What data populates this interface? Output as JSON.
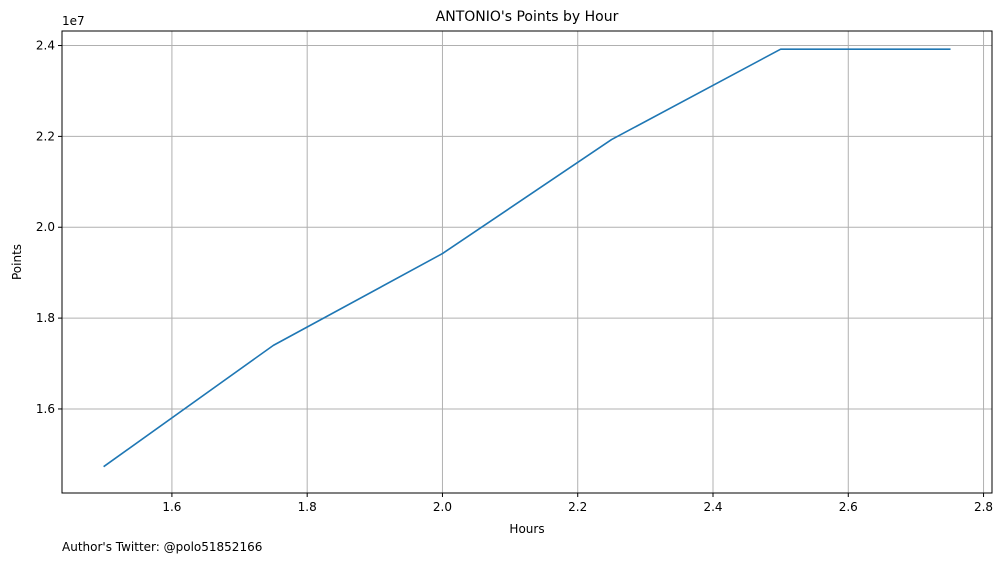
{
  "chart_data": {
    "type": "line",
    "title": "ANTONIO's Points by Hour",
    "xlabel": "Hours",
    "ylabel": "Points",
    "y_offset_label": "1e7",
    "y_multiplier": 10000000,
    "x": [
      1.5,
      1.75,
      2.0,
      2.25,
      2.5,
      2.75
    ],
    "series": [
      {
        "values": [
          14740000,
          17400000,
          19420000,
          21930000,
          23920000,
          23920000
        ],
        "color": "#1f77b4"
      }
    ],
    "xlim": [
      1.4375,
      2.8125
    ],
    "ylim": [
      14150000,
      24320000
    ],
    "xticks": [
      1.6,
      1.8,
      2.0,
      2.2,
      2.4,
      2.6,
      2.8
    ],
    "xtick_labels": [
      "1.6",
      "1.8",
      "2.0",
      "2.2",
      "2.4",
      "2.6",
      "2.8"
    ],
    "yticks": [
      16000000,
      18000000,
      20000000,
      22000000,
      24000000
    ],
    "ytick_labels": [
      "1.6",
      "1.8",
      "2.0",
      "2.2",
      "2.4"
    ],
    "grid": true,
    "grid_color": "#b0b0b0"
  },
  "footer": {
    "credit": "Author's Twitter: @polo51852166"
  }
}
